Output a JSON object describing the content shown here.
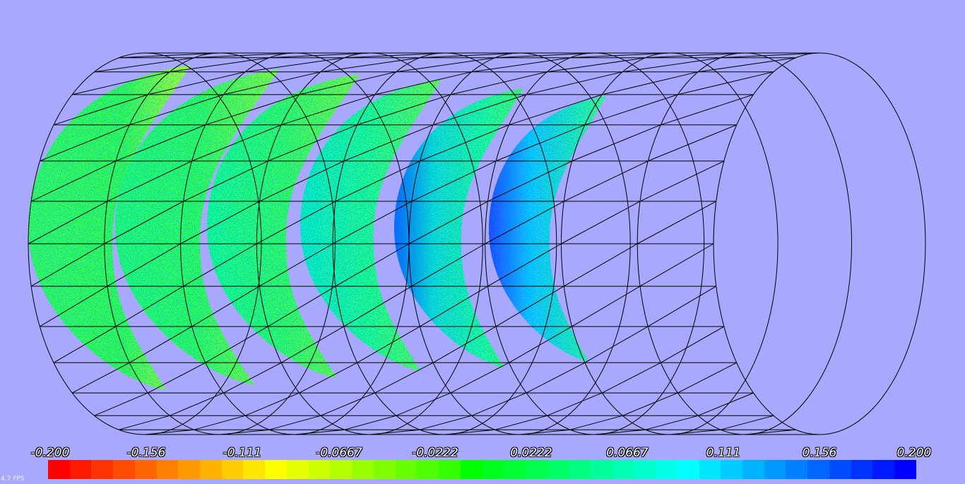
{
  "scene": {
    "background": "#a8a8fe",
    "wire_color": "#000000",
    "ring_count": 10,
    "stripe_count": 6
  },
  "colorbar": {
    "labels": [
      "-0.200",
      "-0.156",
      "-0.111",
      "-0.0667",
      "-0.0222",
      "0.0222",
      "0.0667",
      "0.111",
      "0.156",
      "0.200"
    ],
    "colors": [
      "#ff0000",
      "#ff1a00",
      "#ff3300",
      "#ff4d00",
      "#ff6600",
      "#ff8000",
      "#ff9900",
      "#ffb300",
      "#ffcc00",
      "#ffe600",
      "#ffff00",
      "#e6ff00",
      "#ccff00",
      "#b3ff00",
      "#99ff00",
      "#80ff00",
      "#66ff00",
      "#4dff00",
      "#33ff00",
      "#00ff00",
      "#00ff1a",
      "#00ff33",
      "#00ff4d",
      "#00ff66",
      "#00ff80",
      "#00ff99",
      "#00ffb3",
      "#00ffcc",
      "#00ffe6",
      "#00ffff",
      "#00e6ff",
      "#00ccff",
      "#00b3ff",
      "#0099ff",
      "#0080ff",
      "#0066ff",
      "#004dff",
      "#0033ff",
      "#001aff",
      "#0000ff"
    ]
  },
  "status": {
    "fps": "4.7 FPS"
  }
}
